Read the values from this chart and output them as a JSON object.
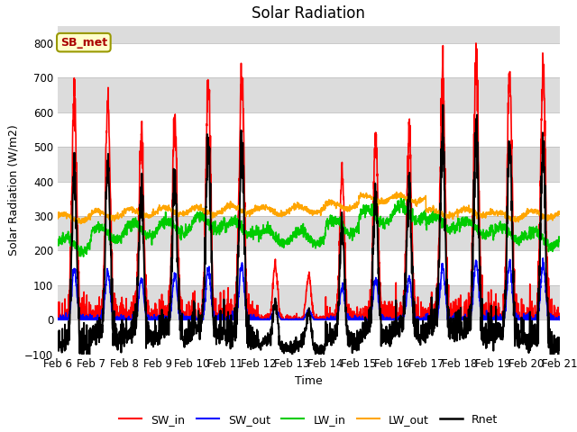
{
  "title": "Solar Radiation",
  "xlabel": "Time",
  "ylabel": "Solar Radiation (W/m2)",
  "ylim": [
    -100,
    850
  ],
  "yticks": [
    -100,
    0,
    100,
    200,
    300,
    400,
    500,
    600,
    700,
    800
  ],
  "n_days": 15,
  "points_per_day": 144,
  "colors": {
    "SW_in": "#FF0000",
    "SW_out": "#0000FF",
    "LW_in": "#00CC00",
    "LW_out": "#FFA500",
    "Rnet": "#000000"
  },
  "line_widths": {
    "SW_in": 1.2,
    "SW_out": 1.2,
    "LW_in": 1.2,
    "LW_out": 1.2,
    "Rnet": 1.4
  },
  "legend_label": "SB_met",
  "background_color": "#FFFFFF",
  "plot_bg_color": "#DCDCDC",
  "alt_band_color": "#FFFFFF",
  "title_fontsize": 12,
  "axis_fontsize": 9,
  "tick_fontsize": 8.5,
  "sw_peaks": [
    650,
    630,
    540,
    580,
    680,
    710,
    160,
    130,
    425,
    530,
    545,
    700,
    750,
    730,
    730
  ],
  "lw_in_vals": [
    220,
    250,
    260,
    270,
    280,
    265,
    240,
    240,
    270,
    300,
    310,
    280,
    265,
    250,
    235
  ],
  "lw_out_vals": [
    295,
    305,
    310,
    315,
    315,
    320,
    315,
    320,
    330,
    350,
    350,
    310,
    310,
    300,
    305
  ]
}
